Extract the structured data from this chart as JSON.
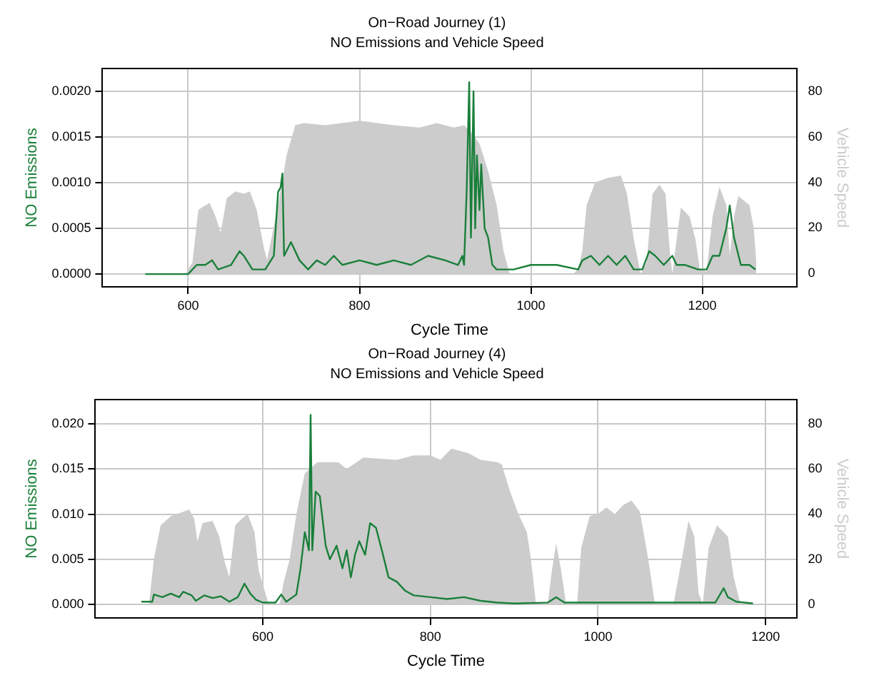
{
  "chart_data": [
    {
      "type": "line",
      "title": "On−Road Journey (1)",
      "subtitle": "NO Emissions and Vehicle Speed",
      "xlabel": "Cycle Time",
      "ylabel": "NO Emissions",
      "y2label": "Vehicle Speed",
      "xlim": [
        500,
        1310
      ],
      "xticks": [
        600,
        800,
        1000,
        1200
      ],
      "ylim": [
        -0.00014,
        0.00225
      ],
      "yticks": [
        {
          "value": 0,
          "label": "0.0000"
        },
        {
          "value": 0.0005,
          "label": "0.0005"
        },
        {
          "value": 0.001,
          "label": "0.0010"
        },
        {
          "value": 0.0015,
          "label": "0.0015"
        },
        {
          "value": 0.002,
          "label": "0.0020"
        }
      ],
      "y2lim": [
        -5.8,
        89.9
      ],
      "y2ticks": [
        0,
        20,
        40,
        60,
        80
      ],
      "grid": true,
      "legend": false,
      "marker": "none",
      "series": [
        {
          "type": "area",
          "axis": "y2",
          "color": "#cccccc",
          "x": [
            597,
            605,
            612,
            625,
            632,
            638,
            645,
            655,
            665,
            672,
            680,
            688,
            692,
            697,
            705,
            715,
            725,
            735,
            760,
            800,
            840,
            870,
            890,
            910,
            922,
            930,
            940,
            950,
            960,
            968,
            975,
            1050,
            1055,
            1060,
            1065,
            1075,
            1090,
            1105,
            1112,
            1120,
            1128,
            1135,
            1142,
            1150,
            1157,
            1162,
            1165,
            1170,
            1175,
            1185,
            1192,
            1197,
            1205,
            1212,
            1220,
            1228,
            1232,
            1237,
            1242,
            1255,
            1260,
            1263
          ],
          "values": [
            0,
            5,
            28,
            31,
            25,
            18,
            33,
            36,
            35,
            36,
            28,
            12,
            6,
            15,
            30,
            52,
            65,
            66,
            65,
            67,
            65,
            64,
            66,
            64,
            65,
            62,
            57,
            45,
            30,
            10,
            0,
            0,
            2,
            10,
            30,
            40,
            42,
            43,
            35,
            15,
            0,
            5,
            35,
            39,
            35,
            10,
            0,
            15,
            29,
            25,
            15,
            2,
            1,
            25,
            38,
            30,
            8,
            25,
            34,
            30,
            20,
            5
          ]
        },
        {
          "type": "line",
          "color": "#1a7f3a",
          "x": [
            550,
            600,
            610,
            620,
            628,
            635,
            650,
            660,
            665,
            675,
            690,
            700,
            705,
            708,
            710,
            712,
            720,
            730,
            740,
            750,
            760,
            770,
            780,
            800,
            820,
            840,
            860,
            880,
            900,
            915,
            920,
            922,
            925,
            928,
            930,
            933,
            935,
            937,
            940,
            942,
            946,
            950,
            955,
            960,
            970,
            980,
            1000,
            1030,
            1055,
            1060,
            1070,
            1080,
            1090,
            1100,
            1110,
            1120,
            1130,
            1138,
            1145,
            1155,
            1165,
            1170,
            1180,
            1195,
            1205,
            1212,
            1220,
            1228,
            1232,
            1237,
            1245,
            1255,
            1262
          ],
          "values": [
            0,
            0,
            0.0001,
            0.0001,
            0.00015,
            5e-05,
            0.0001,
            0.00025,
            0.0002,
            5e-05,
            5e-05,
            0.0002,
            0.0009,
            0.00095,
            0.0011,
            0.0002,
            0.00035,
            0.00015,
            5e-05,
            0.00015,
            0.0001,
            0.0002,
            0.0001,
            0.00015,
            0.0001,
            0.00015,
            0.0001,
            0.0002,
            0.00015,
            0.0001,
            0.0002,
            0.0001,
            0.0009,
            0.0021,
            0.0004,
            0.002,
            0.0005,
            0.0013,
            0.0007,
            0.0012,
            0.0005,
            0.0004,
            0.0001,
            5e-05,
            5e-05,
            5e-05,
            0.0001,
            0.0001,
            5e-05,
            0.00015,
            0.0002,
            0.0001,
            0.0002,
            0.0001,
            0.0002,
            5e-05,
            5e-05,
            0.00025,
            0.0002,
            0.0001,
            0.0002,
            0.0001,
            0.0001,
            5e-05,
            5e-05,
            0.0002,
            0.0002,
            0.0005,
            0.00075,
            0.0004,
            0.0001,
            0.0001,
            5e-05
          ]
        }
      ]
    },
    {
      "type": "line",
      "title": "On−Road Journey (4)",
      "subtitle": "NO Emissions and Vehicle Speed",
      "xlabel": "Cycle Time",
      "ylabel": "NO Emissions",
      "y2label": "Vehicle Speed",
      "xlim": [
        400,
        1237
      ],
      "xticks": [
        600,
        800,
        1000,
        1200
      ],
      "ylim": [
        -0.0015,
        0.0227
      ],
      "yticks": [
        {
          "value": 0,
          "label": "0.000"
        },
        {
          "value": 0.005,
          "label": "0.005"
        },
        {
          "value": 0.01,
          "label": "0.010"
        },
        {
          "value": 0.015,
          "label": "0.015"
        },
        {
          "value": 0.02,
          "label": "0.020"
        }
      ],
      "y2lim": [
        -6,
        90.7
      ],
      "y2ticks": [
        0,
        20,
        40,
        60,
        80
      ],
      "grid": true,
      "legend": false,
      "marker": "none",
      "series": [
        {
          "type": "area",
          "axis": "y2",
          "color": "#cccccc",
          "x": [
            464,
            470,
            478,
            490,
            505,
            512,
            518,
            522,
            528,
            540,
            548,
            555,
            560,
            567,
            575,
            582,
            590,
            595,
            603,
            607,
            620,
            625,
            632,
            640,
            650,
            665,
            690,
            700,
            720,
            760,
            780,
            800,
            812,
            825,
            845,
            860,
            880,
            885,
            895,
            905,
            915,
            920,
            926,
            940,
            945,
            950,
            956,
            962,
            975,
            980,
            990,
            1000,
            1010,
            1020,
            1030,
            1040,
            1050,
            1060,
            1068,
            1090,
            1100,
            1108,
            1115,
            1120,
            1125,
            1132,
            1142,
            1155,
            1162,
            1170
          ],
          "values": [
            0,
            20,
            35,
            39,
            41,
            42,
            38,
            28,
            36,
            37,
            30,
            18,
            12,
            35,
            38,
            40,
            32,
            15,
            5,
            0,
            0,
            10,
            20,
            40,
            58,
            63,
            63,
            60,
            65,
            64,
            66,
            66,
            64,
            69,
            67,
            64,
            63,
            62,
            50,
            40,
            32,
            20,
            0,
            0,
            15,
            27,
            15,
            0,
            0,
            25,
            39,
            40,
            43,
            40,
            44,
            46,
            41,
            20,
            0,
            0,
            20,
            37,
            30,
            5,
            0,
            25,
            35,
            30,
            12,
            0
          ]
        },
        {
          "type": "line",
          "color": "#1a7f3a",
          "x": [
            455,
            468,
            470,
            480,
            490,
            500,
            505,
            515,
            520,
            530,
            540,
            550,
            560,
            570,
            578,
            585,
            592,
            600,
            615,
            622,
            628,
            640,
            645,
            650,
            655,
            657,
            659,
            663,
            668,
            675,
            680,
            688,
            695,
            700,
            705,
            710,
            715,
            722,
            728,
            735,
            742,
            750,
            760,
            770,
            780,
            800,
            820,
            840,
            860,
            880,
            900,
            940,
            950,
            960,
            1000,
            1050,
            1100,
            1140,
            1150,
            1155,
            1165,
            1185
          ],
          "values": [
            0.0003,
            0.0003,
            0.0011,
            0.0008,
            0.0012,
            0.0008,
            0.0014,
            0.001,
            0.0004,
            0.001,
            0.0007,
            0.0009,
            0.0003,
            0.0008,
            0.0023,
            0.0012,
            0.0005,
            0.0002,
            0.0002,
            0.0011,
            0.0003,
            0.0011,
            0.004,
            0.008,
            0.006,
            0.021,
            0.006,
            0.0125,
            0.012,
            0.0065,
            0.005,
            0.0065,
            0.004,
            0.006,
            0.003,
            0.0055,
            0.007,
            0.0055,
            0.009,
            0.0085,
            0.006,
            0.003,
            0.0025,
            0.0015,
            0.001,
            0.0008,
            0.0006,
            0.0008,
            0.0004,
            0.0002,
            0.0001,
            0.0002,
            0.0008,
            0.0002,
            0.0002,
            0.0002,
            0.0002,
            0.0002,
            0.0018,
            0.0008,
            0.0003,
            0.0001
          ]
        }
      ]
    }
  ]
}
